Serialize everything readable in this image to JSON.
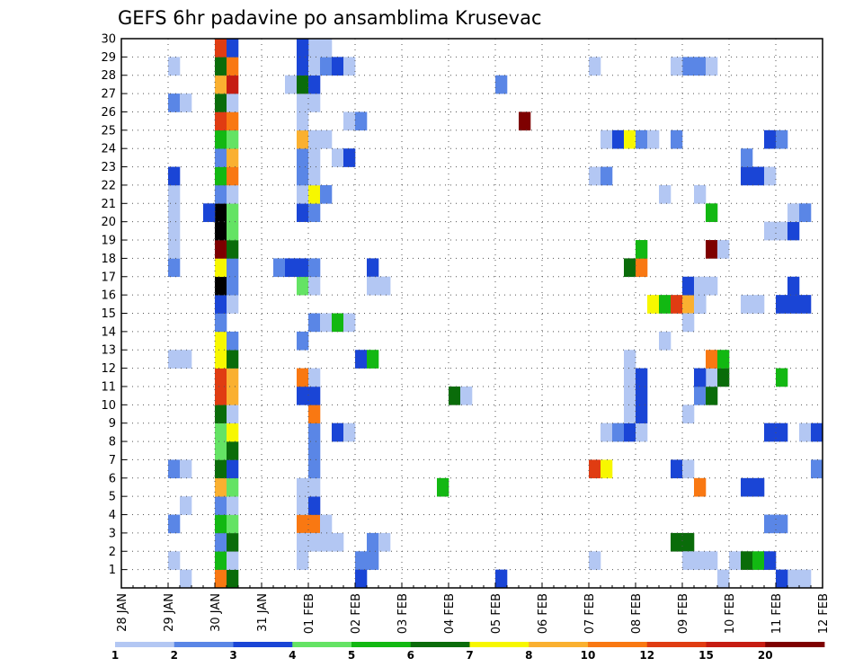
{
  "chart_data": {
    "type": "heatmap",
    "title": "GEFS 6hr padavine po ansamblima Krusevac",
    "xlabel": "",
    "ylabel": "",
    "x_tick_labels": [
      "28 JAN",
      "29 JAN",
      "30 JAN",
      "31 JAN",
      "01 FEB",
      "02 FEB",
      "03 FEB",
      "04 FEB",
      "05 FEB",
      "06 FEB",
      "07 FEB",
      "08 FEB",
      "09 FEB",
      "10 FEB",
      "11 FEB",
      "12 FEB"
    ],
    "y_tick_labels": [
      "1",
      "2",
      "3",
      "4",
      "5",
      "6",
      "7",
      "8",
      "9",
      "10",
      "11",
      "12",
      "13",
      "14",
      "15",
      "16",
      "17",
      "18",
      "19",
      "20",
      "21",
      "22",
      "23",
      "24",
      "25",
      "26",
      "27",
      "28",
      "29",
      "30"
    ],
    "xlim": [
      0,
      60
    ],
    "ylim": [
      0,
      30
    ],
    "grid": true,
    "colorbar": {
      "labels": [
        "1",
        "2",
        "3",
        "4",
        "5",
        "6",
        "7",
        "8",
        "10",
        "12",
        "15",
        "20"
      ],
      "colors": [
        "#b3c7f3",
        "#5a86e6",
        "#1a45d6",
        "#64e364",
        "#12b812",
        "#0a6c0a",
        "#f7f700",
        "#fab030",
        "#f97812",
        "#e03c12",
        "#c61c12",
        "#7e0000"
      ]
    },
    "cells": [
      [
        5,
        0,
        0
      ],
      [
        8,
        0,
        8
      ],
      [
        32,
        0,
        2
      ],
      [
        4,
        1,
        0
      ],
      [
        8,
        1,
        4
      ],
      [
        8,
        2,
        1
      ],
      [
        8,
        3,
        4
      ],
      [
        8,
        4,
        1
      ],
      [
        8,
        5,
        7
      ],
      [
        8,
        6,
        5
      ],
      [
        8,
        7,
        3
      ],
      [
        8,
        8,
        3
      ],
      [
        8,
        9,
        5
      ],
      [
        8,
        10,
        9
      ],
      [
        8,
        11,
        9
      ],
      [
        8,
        12,
        6
      ],
      [
        8,
        13,
        6
      ],
      [
        8,
        14,
        1
      ],
      [
        8,
        15,
        2
      ],
      [
        8,
        16,
        13
      ],
      [
        8,
        17,
        6
      ],
      [
        8,
        18,
        11
      ],
      [
        8,
        19,
        12
      ],
      [
        8,
        20,
        13
      ],
      [
        8,
        21,
        1
      ],
      [
        8,
        22,
        4
      ],
      [
        8,
        23,
        1
      ],
      [
        8,
        24,
        4
      ],
      [
        8,
        25,
        9
      ],
      [
        8,
        26,
        5
      ],
      [
        8,
        27,
        7
      ],
      [
        8,
        28,
        5
      ],
      [
        8,
        29,
        9
      ],
      [
        9,
        0,
        5
      ],
      [
        9,
        1,
        0
      ],
      [
        9,
        2,
        5
      ],
      [
        9,
        3,
        3
      ],
      [
        9,
        4,
        0
      ],
      [
        9,
        5,
        3
      ],
      [
        9,
        6,
        2
      ],
      [
        9,
        7,
        5
      ],
      [
        9,
        8,
        6
      ],
      [
        9,
        9,
        0
      ],
      [
        9,
        10,
        7
      ],
      [
        9,
        11,
        7
      ],
      [
        9,
        12,
        5
      ],
      [
        9,
        13,
        1
      ],
      [
        9,
        15,
        0
      ],
      [
        9,
        16,
        1
      ],
      [
        9,
        17,
        1
      ],
      [
        9,
        18,
        5
      ],
      [
        9,
        19,
        3
      ],
      [
        9,
        20,
        3
      ],
      [
        9,
        21,
        0
      ],
      [
        9,
        22,
        8
      ],
      [
        9,
        23,
        7
      ],
      [
        9,
        24,
        3
      ],
      [
        9,
        25,
        8
      ],
      [
        9,
        26,
        0
      ],
      [
        9,
        27,
        10
      ],
      [
        9,
        28,
        8
      ],
      [
        9,
        29,
        2
      ],
      [
        4,
        3,
        1
      ],
      [
        4,
        6,
        1
      ],
      [
        5,
        6,
        0
      ],
      [
        5,
        4,
        0
      ],
      [
        4,
        12,
        0
      ],
      [
        5,
        12,
        0
      ],
      [
        4,
        17,
        1
      ],
      [
        4,
        18,
        0
      ],
      [
        4,
        19,
        0
      ],
      [
        4,
        20,
        0
      ],
      [
        4,
        21,
        0
      ],
      [
        4,
        22,
        2
      ],
      [
        4,
        26,
        1
      ],
      [
        5,
        26,
        0
      ],
      [
        4,
        28,
        0
      ],
      [
        7,
        20,
        2
      ],
      [
        14,
        27,
        0
      ],
      [
        13,
        17,
        1
      ],
      [
        15,
        1,
        0
      ],
      [
        14,
        17,
        2
      ],
      [
        15,
        3,
        8
      ],
      [
        16,
        3,
        8
      ],
      [
        15,
        4,
        0
      ],
      [
        16,
        4,
        2
      ],
      [
        16,
        5,
        0
      ],
      [
        15,
        5,
        0
      ],
      [
        15,
        2,
        0
      ],
      [
        16,
        2,
        0
      ],
      [
        17,
        3,
        0
      ],
      [
        16,
        6,
        1
      ],
      [
        16,
        7,
        1
      ],
      [
        16,
        8,
        1
      ],
      [
        16,
        9,
        8
      ],
      [
        16,
        10,
        2
      ],
      [
        15,
        10,
        2
      ],
      [
        15,
        11,
        8
      ],
      [
        16,
        11,
        0
      ],
      [
        15,
        13,
        1
      ],
      [
        16,
        14,
        1
      ],
      [
        15,
        16,
        3
      ],
      [
        16,
        16,
        0
      ],
      [
        15,
        17,
        2
      ],
      [
        16,
        17,
        1
      ],
      [
        15,
        20,
        2
      ],
      [
        16,
        20,
        1
      ],
      [
        15,
        21,
        0
      ],
      [
        16,
        21,
        6
      ],
      [
        17,
        21,
        1
      ],
      [
        15,
        22,
        1
      ],
      [
        16,
        22,
        0
      ],
      [
        15,
        23,
        1
      ],
      [
        16,
        23,
        0
      ],
      [
        15,
        24,
        7
      ],
      [
        16,
        24,
        0
      ],
      [
        17,
        24,
        0
      ],
      [
        15,
        25,
        0
      ],
      [
        15,
        26,
        0
      ],
      [
        16,
        26,
        0
      ],
      [
        15,
        27,
        5
      ],
      [
        16,
        27,
        2
      ],
      [
        15,
        28,
        2
      ],
      [
        16,
        28,
        0
      ],
      [
        17,
        28,
        1
      ],
      [
        16,
        29,
        0
      ],
      [
        17,
        29,
        0
      ],
      [
        15,
        29,
        2
      ],
      [
        17,
        14,
        0
      ],
      [
        18,
        28,
        2
      ],
      [
        19,
        28,
        0
      ],
      [
        17,
        2,
        0
      ],
      [
        18,
        2,
        0
      ],
      [
        20,
        1,
        1
      ],
      [
        21,
        1,
        1
      ],
      [
        21,
        2,
        1
      ],
      [
        22,
        2,
        0
      ],
      [
        18,
        14,
        4
      ],
      [
        19,
        14,
        0
      ],
      [
        18,
        8,
        2
      ],
      [
        19,
        8,
        0
      ],
      [
        18,
        23,
        0
      ],
      [
        19,
        23,
        2
      ],
      [
        19,
        25,
        0
      ],
      [
        20,
        25,
        1
      ],
      [
        20,
        0,
        2
      ],
      [
        21,
        17,
        2
      ],
      [
        21,
        16,
        0
      ],
      [
        22,
        16,
        0
      ],
      [
        20,
        12,
        2
      ],
      [
        21,
        12,
        4
      ],
      [
        22,
        16,
        0
      ],
      [
        27,
        5,
        4
      ],
      [
        28,
        10,
        5
      ],
      [
        29,
        10,
        0
      ],
      [
        32,
        27,
        1
      ],
      [
        34,
        25,
        11
      ],
      [
        40,
        6,
        9
      ],
      [
        41,
        6,
        6
      ],
      [
        40,
        1,
        0
      ],
      [
        40,
        22,
        0
      ],
      [
        40,
        28,
        0
      ],
      [
        41,
        22,
        1
      ],
      [
        41,
        24,
        0
      ],
      [
        42,
        24,
        2
      ],
      [
        43,
        24,
        6
      ],
      [
        44,
        24,
        1
      ],
      [
        45,
        24,
        0
      ],
      [
        47,
        24,
        1
      ],
      [
        41,
        8,
        0
      ],
      [
        42,
        8,
        1
      ],
      [
        43,
        8,
        2
      ],
      [
        44,
        8,
        0
      ],
      [
        43,
        9,
        0
      ],
      [
        43,
        10,
        0
      ],
      [
        43,
        11,
        0
      ],
      [
        43,
        12,
        0
      ],
      [
        44,
        9,
        2
      ],
      [
        44,
        10,
        2
      ],
      [
        44,
        11,
        2
      ],
      [
        43,
        17,
        5
      ],
      [
        44,
        17,
        8
      ],
      [
        44,
        18,
        4
      ],
      [
        45,
        15,
        6
      ],
      [
        46,
        15,
        4
      ],
      [
        47,
        15,
        9
      ],
      [
        48,
        15,
        7
      ],
      [
        49,
        15,
        1
      ],
      [
        48,
        16,
        2
      ],
      [
        49,
        16,
        0
      ],
      [
        50,
        16,
        0
      ],
      [
        49,
        15,
        0
      ],
      [
        46,
        13,
        0
      ],
      [
        46,
        21,
        0
      ],
      [
        47,
        2,
        5
      ],
      [
        48,
        2,
        5
      ],
      [
        48,
        1,
        0
      ],
      [
        49,
        1,
        0
      ],
      [
        50,
        1,
        0
      ],
      [
        47,
        6,
        2
      ],
      [
        48,
        6,
        0
      ],
      [
        49,
        5,
        8
      ],
      [
        48,
        9,
        0
      ],
      [
        48,
        14,
        0
      ],
      [
        49,
        10,
        1
      ],
      [
        50,
        10,
        5
      ],
      [
        50,
        11,
        0
      ],
      [
        49,
        11,
        2
      ],
      [
        51,
        11,
        5
      ],
      [
        50,
        12,
        8
      ],
      [
        51,
        12,
        4
      ],
      [
        50,
        18,
        11
      ],
      [
        51,
        18,
        0
      ],
      [
        50,
        20,
        4
      ],
      [
        49,
        21,
        0
      ],
      [
        48,
        28,
        1
      ],
      [
        49,
        28,
        1
      ],
      [
        50,
        28,
        0
      ],
      [
        47,
        28,
        0
      ],
      [
        51,
        0,
        0
      ],
      [
        52,
        1,
        0
      ],
      [
        53,
        1,
        5
      ],
      [
        54,
        1,
        4
      ],
      [
        55,
        1,
        2
      ],
      [
        53,
        5,
        2
      ],
      [
        54,
        5,
        2
      ],
      [
        53,
        22,
        2
      ],
      [
        54,
        22,
        2
      ],
      [
        53,
        23,
        1
      ],
      [
        55,
        22,
        0
      ],
      [
        53,
        15,
        0
      ],
      [
        54,
        15,
        0
      ],
      [
        56,
        15,
        2
      ],
      [
        57,
        15,
        2
      ],
      [
        58,
        15,
        2
      ],
      [
        55,
        8,
        2
      ],
      [
        56,
        8,
        2
      ],
      [
        58,
        8,
        0
      ],
      [
        59,
        8,
        2
      ],
      [
        56,
        11,
        4
      ],
      [
        55,
        19,
        0
      ],
      [
        56,
        19,
        0
      ],
      [
        57,
        19,
        2
      ],
      [
        57,
        20,
        0
      ],
      [
        58,
        20,
        1
      ],
      [
        57,
        16,
        2
      ],
      [
        55,
        3,
        1
      ],
      [
        56,
        3,
        1
      ],
      [
        57,
        0,
        0
      ],
      [
        58,
        0,
        0
      ],
      [
        56,
        0,
        2
      ],
      [
        55,
        24,
        2
      ],
      [
        56,
        24,
        1
      ],
      [
        59,
        6,
        1
      ]
    ]
  }
}
